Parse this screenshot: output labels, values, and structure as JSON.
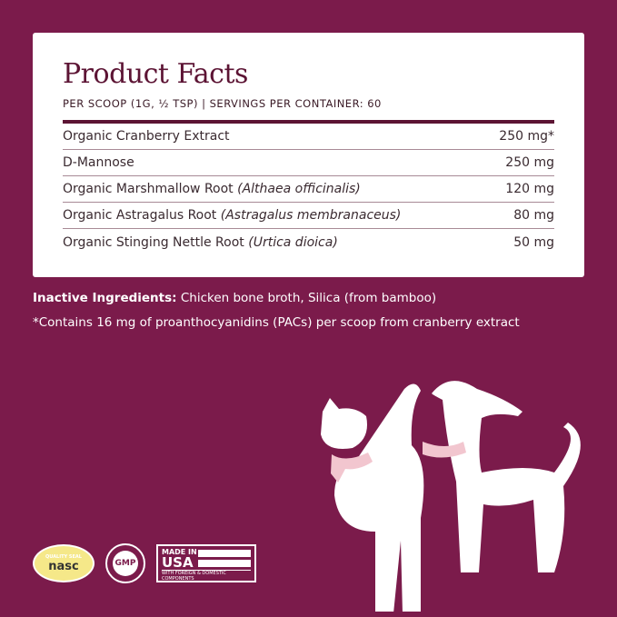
{
  "facts": {
    "title": "Product Facts",
    "serving": "PER SCOOP (1G, ½ TSP)  |  SERVINGS PER CONTAINER: 60",
    "rows": [
      {
        "name": "Organic Cranberry Extract",
        "latin": "",
        "amount": "250 mg*"
      },
      {
        "name": "D-Mannose",
        "latin": "",
        "amount": "250 mg"
      },
      {
        "name": "Organic Marshmallow Root",
        "latin": "(Althaea officinalis)",
        "amount": "120 mg"
      },
      {
        "name": "Organic Astragalus Root",
        "latin": "(Astragalus membranaceus)",
        "amount": "80 mg"
      },
      {
        "name": "Organic Stinging Nettle Root",
        "latin": "(Urtica dioica)",
        "amount": "50 mg"
      }
    ]
  },
  "inactive": {
    "label": "Inactive Ingredients:",
    "text": " Chicken bone broth, Silica (from bamboo)"
  },
  "footnote": "*Contains 16 mg of proanthocyanidins (PACs) per scoop from cranberry extract",
  "badges": {
    "nasc_top": "QUALITY SEAL",
    "nasc": "nasc",
    "gmp": "GMP",
    "usa_line1": "MADE IN",
    "usa_line2": "USA",
    "usa_sub": "WITH FOREIGN & DOMESTIC COMPONENTS"
  },
  "colors": {
    "background": "#7b1b4b",
    "title": "#5c1434"
  }
}
